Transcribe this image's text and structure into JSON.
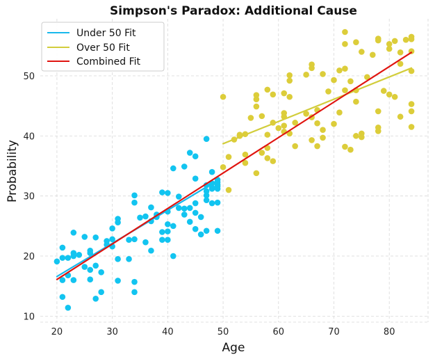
{
  "chart_data": {
    "type": "scatter",
    "title": "Simpson's Paradox: Additional Cause",
    "xlabel": "Age",
    "ylabel": "Probability",
    "xlim": [
      17,
      87
    ],
    "ylim": [
      9,
      59.5
    ],
    "xticks": [
      20,
      30,
      40,
      50,
      60,
      70,
      80
    ],
    "yticks": [
      10,
      20,
      30,
      40,
      50
    ],
    "grid": true,
    "legend_position": "top-left",
    "legend": [
      "Under 50 Fit",
      "Over 50 Fit",
      "Combined Fit"
    ],
    "colors": {
      "under": "#12c4f0",
      "over": "#dccd3a",
      "under_fit": "#18b8ec",
      "over_fit": "#d2cd3c",
      "combined_fit": "#e0140f"
    },
    "series": [
      {
        "group": "under",
        "points": [
          [
            20,
            19.1
          ],
          [
            21,
            21.4
          ],
          [
            21,
            19.7
          ],
          [
            21,
            16.0
          ],
          [
            21,
            13.2
          ],
          [
            22,
            11.4
          ],
          [
            22,
            16.8
          ],
          [
            22,
            19.7
          ],
          [
            23,
            23.9
          ],
          [
            23,
            20.5
          ],
          [
            23,
            20.0
          ],
          [
            23,
            16.0
          ],
          [
            24,
            20.2
          ],
          [
            25,
            23.2
          ],
          [
            25,
            18.2
          ],
          [
            26,
            20.9
          ],
          [
            26,
            17.7
          ],
          [
            26,
            16.1
          ],
          [
            26,
            20.5
          ],
          [
            27,
            23.1
          ],
          [
            27,
            18.4
          ],
          [
            27,
            12.9
          ],
          [
            28,
            17.3
          ],
          [
            28,
            14.0
          ],
          [
            29,
            21.9
          ],
          [
            29,
            22.5
          ],
          [
            30,
            24.6
          ],
          [
            30,
            22.8
          ],
          [
            30,
            21.6
          ],
          [
            31,
            26.2
          ],
          [
            31,
            25.6
          ],
          [
            31,
            19.5
          ],
          [
            31,
            15.9
          ],
          [
            33,
            19.5
          ],
          [
            33,
            22.7
          ],
          [
            34,
            30.1
          ],
          [
            34,
            28.9
          ],
          [
            34,
            22.8
          ],
          [
            34,
            15.7
          ],
          [
            34,
            14.0
          ],
          [
            35,
            26.4
          ],
          [
            36,
            26.6
          ],
          [
            36,
            22.3
          ],
          [
            37,
            28.1
          ],
          [
            37,
            25.8
          ],
          [
            37,
            20.9
          ],
          [
            38,
            26.5
          ],
          [
            38,
            26.9
          ],
          [
            39,
            30.6
          ],
          [
            39,
            24.0
          ],
          [
            39,
            22.7
          ],
          [
            40,
            30.5
          ],
          [
            40,
            27.4
          ],
          [
            40,
            25.3
          ],
          [
            40,
            24.1
          ],
          [
            40,
            22.7
          ],
          [
            41,
            34.6
          ],
          [
            41,
            25.0
          ],
          [
            41,
            20.0
          ],
          [
            42,
            29.9
          ],
          [
            42,
            28.0
          ],
          [
            43,
            34.9
          ],
          [
            43,
            27.9
          ],
          [
            43,
            26.9
          ],
          [
            44,
            37.2
          ],
          [
            44,
            28.0
          ],
          [
            44,
            25.7
          ],
          [
            45,
            36.6
          ],
          [
            45,
            32.9
          ],
          [
            45,
            28.8
          ],
          [
            45,
            27.2
          ],
          [
            45,
            24.5
          ],
          [
            46,
            26.5
          ],
          [
            46,
            23.6
          ],
          [
            47,
            39.5
          ],
          [
            47,
            31.8
          ],
          [
            47,
            30.8
          ],
          [
            47,
            30.1
          ],
          [
            47,
            29.3
          ],
          [
            47,
            24.2
          ],
          [
            48,
            34.0
          ],
          [
            48,
            32.1
          ],
          [
            48,
            31.2
          ],
          [
            48,
            31.4
          ],
          [
            48,
            28.8
          ],
          [
            49,
            32.7
          ],
          [
            49,
            32.3
          ],
          [
            49,
            31.9
          ],
          [
            49,
            31.6
          ],
          [
            49,
            31.2
          ],
          [
            49,
            28.9
          ],
          [
            49,
            24.2
          ]
        ]
      },
      {
        "group": "over",
        "points": [
          [
            50,
            46.5
          ],
          [
            50,
            34.8
          ],
          [
            51,
            36.5
          ],
          [
            51,
            31.0
          ],
          [
            52,
            39.4
          ],
          [
            53,
            40.0
          ],
          [
            53,
            40.2
          ],
          [
            54,
            40.3
          ],
          [
            54,
            36.9
          ],
          [
            54,
            35.5
          ],
          [
            55,
            43.0
          ],
          [
            56,
            46.8
          ],
          [
            56,
            46.1
          ],
          [
            56,
            44.9
          ],
          [
            56,
            33.8
          ],
          [
            57,
            43.3
          ],
          [
            57,
            37.2
          ],
          [
            58,
            47.7
          ],
          [
            58,
            40.2
          ],
          [
            58,
            38.0
          ],
          [
            58,
            36.3
          ],
          [
            59,
            46.9
          ],
          [
            59,
            42.2
          ],
          [
            59,
            35.8
          ],
          [
            60,
            41.3
          ],
          [
            61,
            47.1
          ],
          [
            61,
            43.8
          ],
          [
            61,
            43.2
          ],
          [
            61,
            41.7
          ],
          [
            61,
            40.7
          ],
          [
            62,
            50.1
          ],
          [
            62,
            49.2
          ],
          [
            62,
            46.5
          ],
          [
            62,
            40.4
          ],
          [
            63,
            42.2
          ],
          [
            63,
            38.3
          ],
          [
            65,
            50.2
          ],
          [
            65,
            43.7
          ],
          [
            66,
            51.9
          ],
          [
            66,
            51.3
          ],
          [
            66,
            43.1
          ],
          [
            66,
            39.3
          ],
          [
            67,
            44.3
          ],
          [
            67,
            42.1
          ],
          [
            67,
            38.3
          ],
          [
            68,
            50.3
          ],
          [
            68,
            41.0
          ],
          [
            68,
            39.7
          ],
          [
            69,
            47.4
          ],
          [
            70,
            49.3
          ],
          [
            70,
            42.0
          ],
          [
            71,
            50.9
          ],
          [
            71,
            43.9
          ],
          [
            72,
            57.3
          ],
          [
            72,
            55.3
          ],
          [
            72,
            51.2
          ],
          [
            72,
            47.6
          ],
          [
            72,
            38.2
          ],
          [
            73,
            49.1
          ],
          [
            73,
            37.7
          ],
          [
            74,
            55.6
          ],
          [
            74,
            47.6
          ],
          [
            74,
            45.7
          ],
          [
            74,
            40.0
          ],
          [
            75,
            54.0
          ],
          [
            75,
            40.4
          ],
          [
            75,
            39.8
          ],
          [
            76,
            49.8
          ],
          [
            77,
            53.5
          ],
          [
            78,
            56.2
          ],
          [
            78,
            55.9
          ],
          [
            78,
            44.1
          ],
          [
            78,
            41.4
          ],
          [
            78,
            40.8
          ],
          [
            79,
            47.5
          ],
          [
            80,
            55.3
          ],
          [
            80,
            54.5
          ],
          [
            80,
            46.9
          ],
          [
            81,
            55.8
          ],
          [
            81,
            46.5
          ],
          [
            82,
            53.9
          ],
          [
            82,
            52.0
          ],
          [
            82,
            43.2
          ],
          [
            83,
            56.0
          ],
          [
            84,
            56.5
          ],
          [
            84,
            56.1
          ],
          [
            84,
            54.1
          ],
          [
            84,
            50.8
          ],
          [
            84,
            45.3
          ],
          [
            84,
            44.1
          ],
          [
            84,
            41.5
          ]
        ]
      }
    ],
    "fits": [
      {
        "name": "Under 50 Fit",
        "x": [
          20,
          49
        ],
        "y": [
          16.6,
          32.6
        ]
      },
      {
        "name": "Over 50 Fit",
        "x": [
          50,
          84
        ],
        "y": [
          38.7,
          51.3
        ]
      },
      {
        "name": "Combined Fit",
        "x": [
          20,
          84
        ],
        "y": [
          16.1,
          53.9
        ]
      }
    ]
  }
}
